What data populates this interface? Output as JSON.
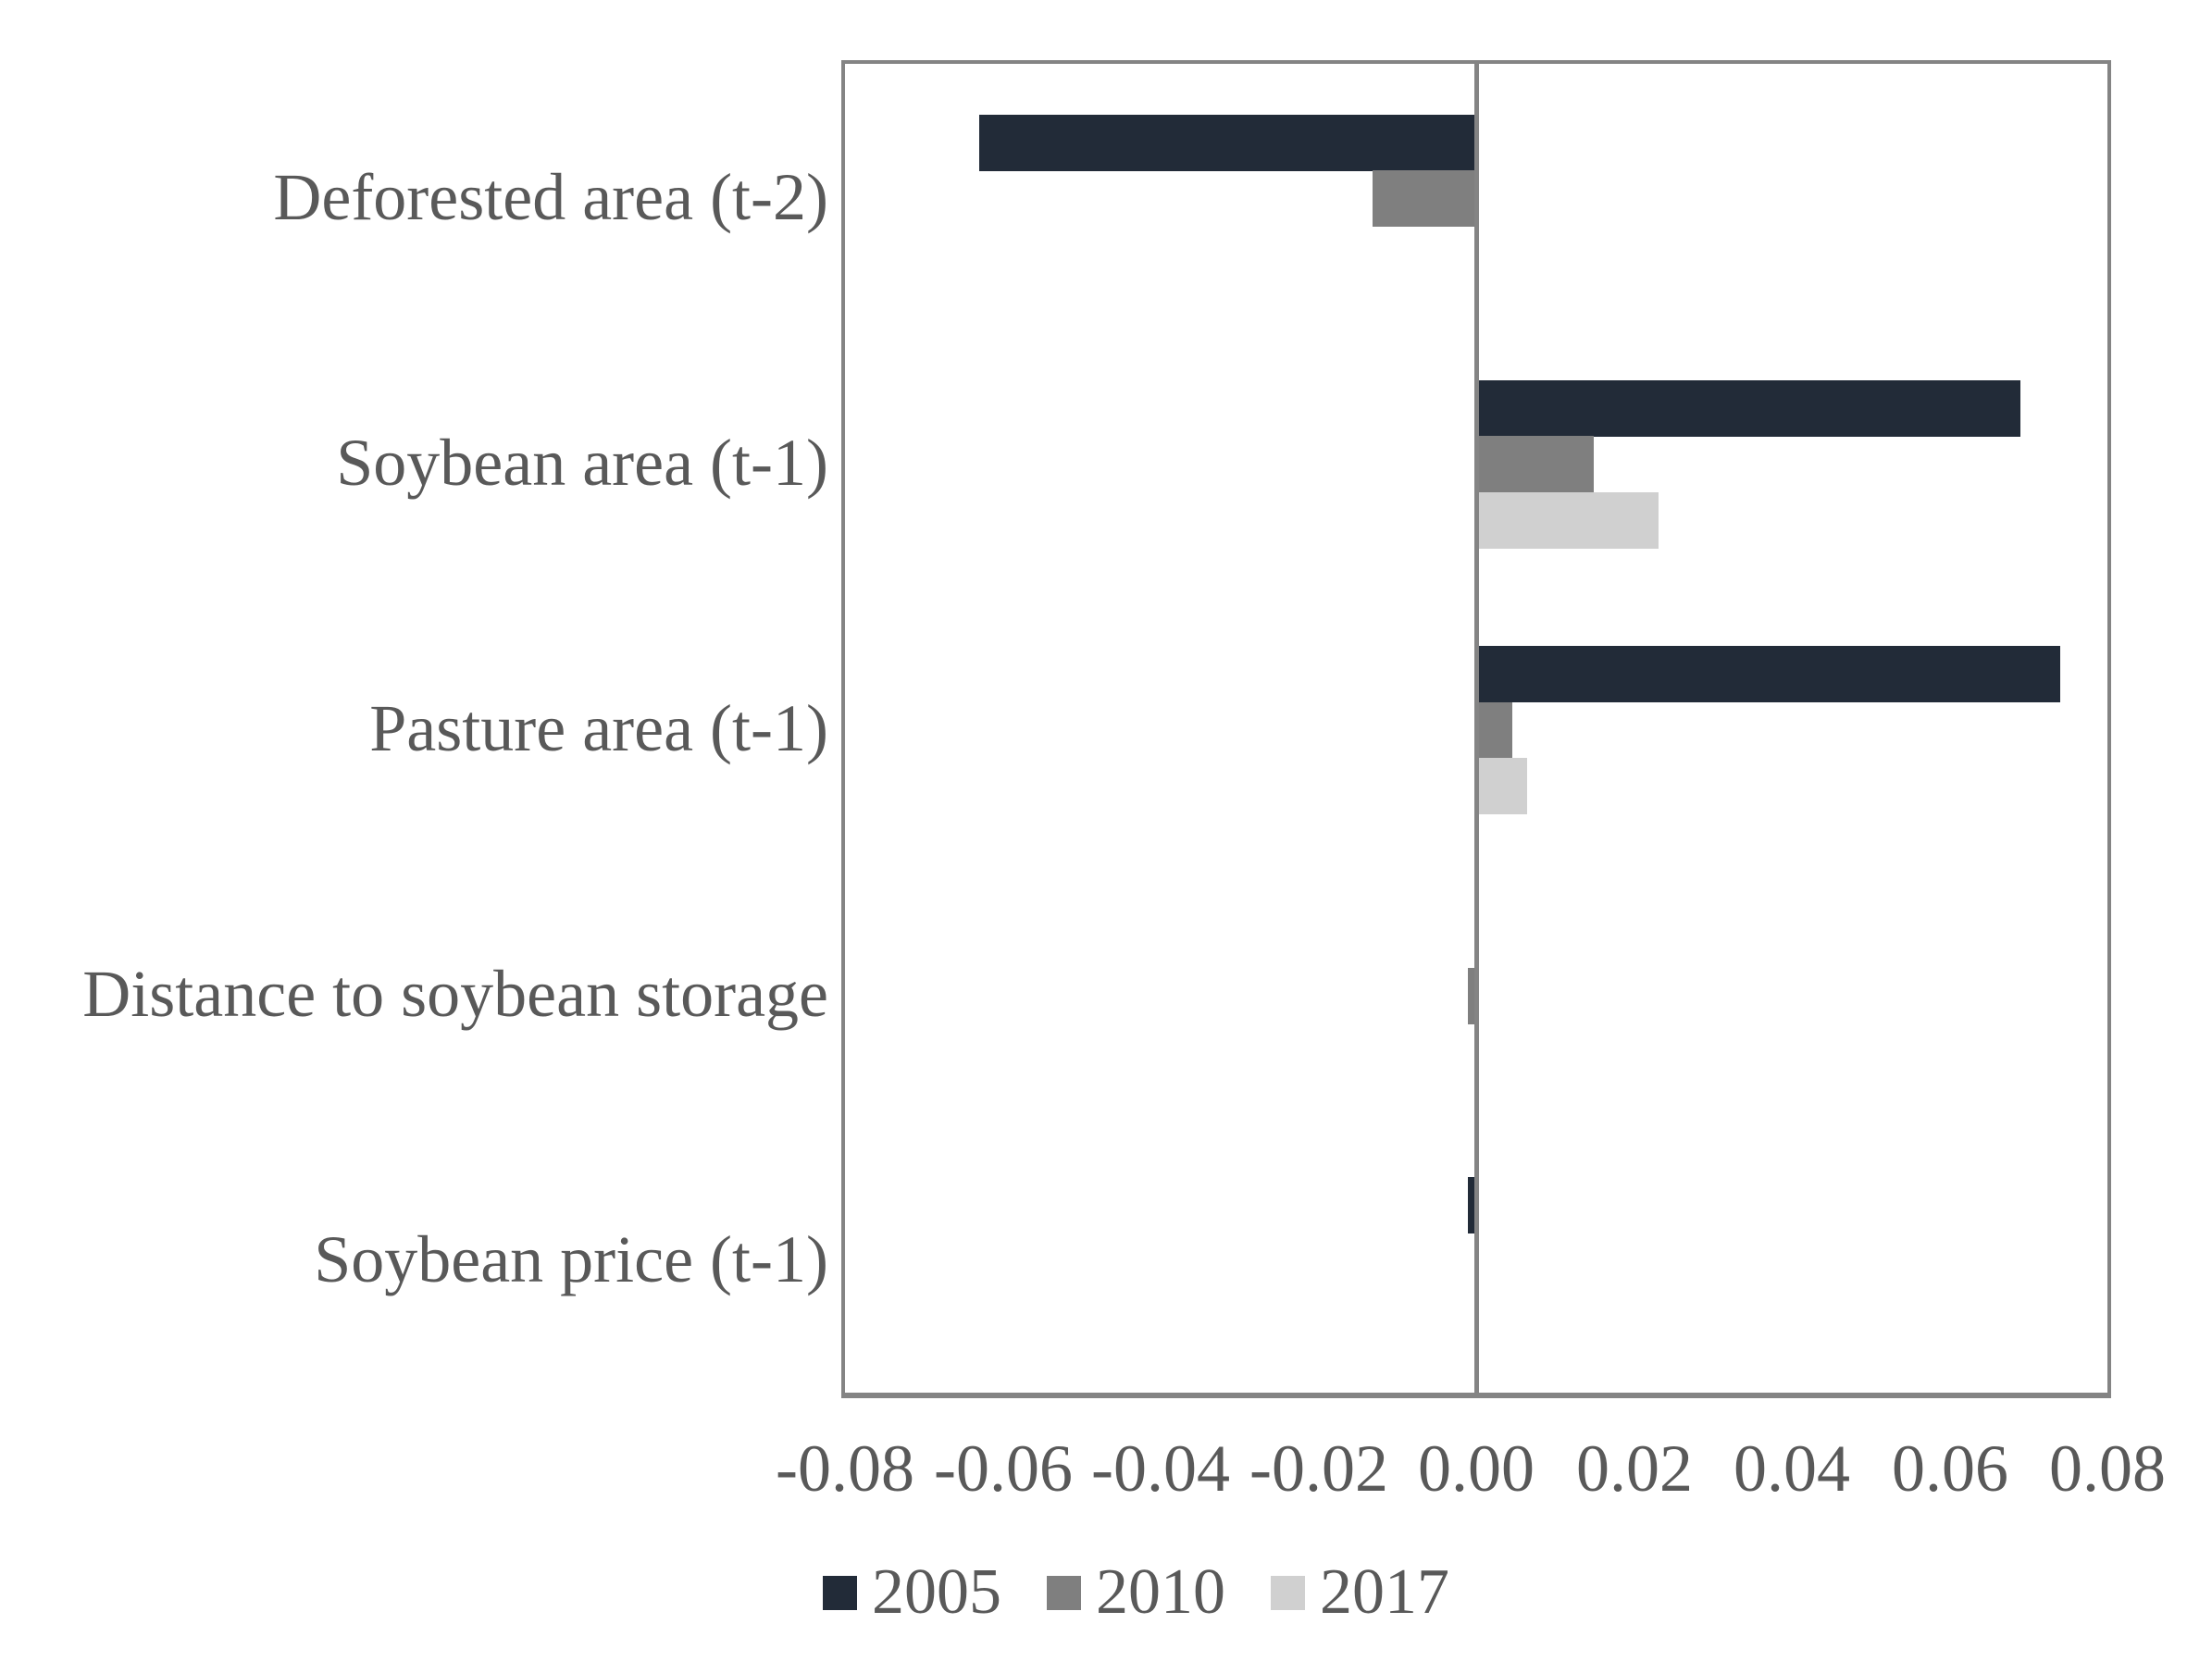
{
  "chart_data": {
    "type": "bar",
    "orientation": "horizontal",
    "title": "",
    "categories": [
      "Deforested area (t-2)",
      "Soybean area (t-1)",
      "Pasture area (t-1)",
      "Distance to soybean storage",
      "Soybean price (t-1)"
    ],
    "series": [
      {
        "name": "2005",
        "color": "#222B38",
        "values": [
          -0.063,
          0.069,
          0.074,
          0.0,
          -0.0011
        ]
      },
      {
        "name": "2010",
        "color": "#7F7F7F",
        "values": [
          -0.0131,
          0.0149,
          0.0046,
          -0.0011,
          0.0
        ]
      },
      {
        "name": "2017",
        "color": "#D0D0D0",
        "values": [
          0.0,
          0.0231,
          0.0065,
          0.0,
          0.0
        ]
      }
    ],
    "x_axis": {
      "min": -0.08,
      "max": 0.08,
      "tick_step": 0.02,
      "tick_labels": [
        "-0.08",
        "-0.06",
        "-0.04",
        "-0.02",
        "0.00",
        "0.02",
        "0.04",
        "0.06",
        "0.08"
      ]
    },
    "legend": {
      "position": "bottom",
      "entries": [
        "2005",
        "2010",
        "2017"
      ]
    },
    "grid": false,
    "colors": {
      "axis_line": "#848484",
      "text": "#595959",
      "background": "#FFFFFF"
    }
  }
}
